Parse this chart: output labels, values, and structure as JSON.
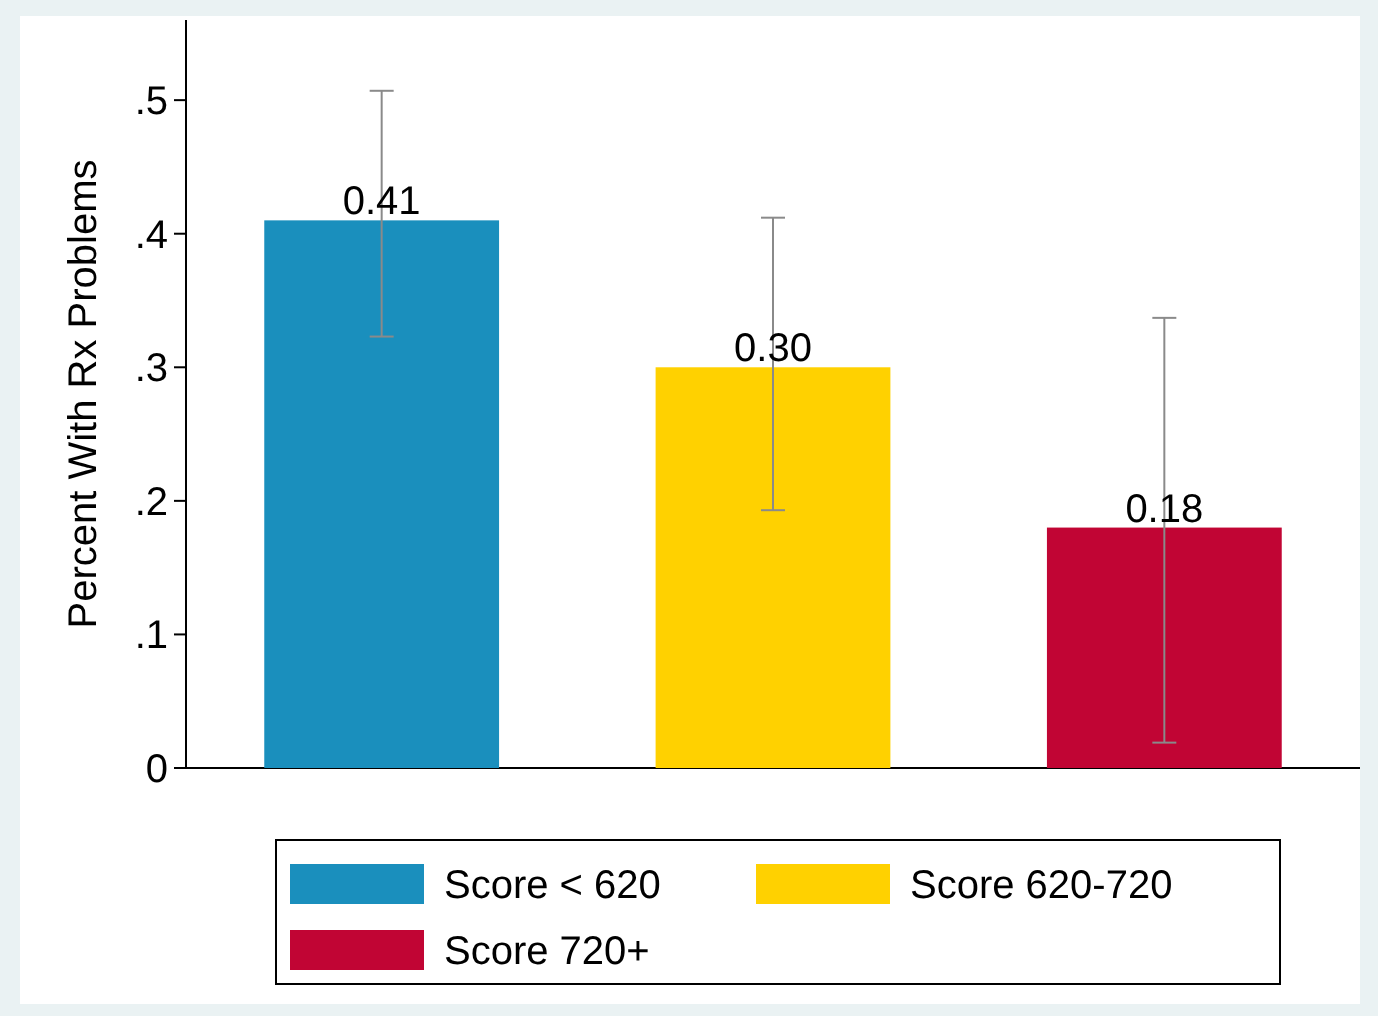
{
  "chart_data": {
    "type": "bar",
    "ylabel": "Percent With Rx Problems",
    "categories": [
      null,
      null,
      null
    ],
    "series": [
      {
        "name": "Score < 620",
        "color": "#1a8fbd",
        "values": [
          0.41,
          null,
          null
        ],
        "value_labels": [
          "0.41",
          null,
          null
        ],
        "errors": [
          [
            0.323,
            0.507
          ],
          null,
          null
        ]
      },
      {
        "name": "Score 620-720",
        "color": "#ffd100",
        "values": [
          null,
          0.3,
          null
        ],
        "value_labels": [
          null,
          "0.30",
          null
        ],
        "errors": [
          null,
          [
            0.193,
            0.412
          ],
          null
        ]
      },
      {
        "name": "Score 720+",
        "color": "#c10534",
        "values": [
          null,
          null,
          0.18
        ],
        "value_labels": [
          null,
          null,
          "0.18"
        ],
        "errors": [
          null,
          null,
          [
            0.019,
            0.337
          ]
        ]
      }
    ],
    "ylim": [
      0,
      0.56
    ],
    "yticks": [
      0,
      {
        "value": 0.1,
        "label": ".1"
      },
      {
        "value": 0.2,
        "label": ".2"
      },
      {
        "value": 0.3,
        "label": ".3"
      },
      {
        "value": 0.4,
        "label": ".4"
      },
      {
        "value": 0.5,
        "label": ".5"
      }
    ],
    "legend": "bottom"
  }
}
